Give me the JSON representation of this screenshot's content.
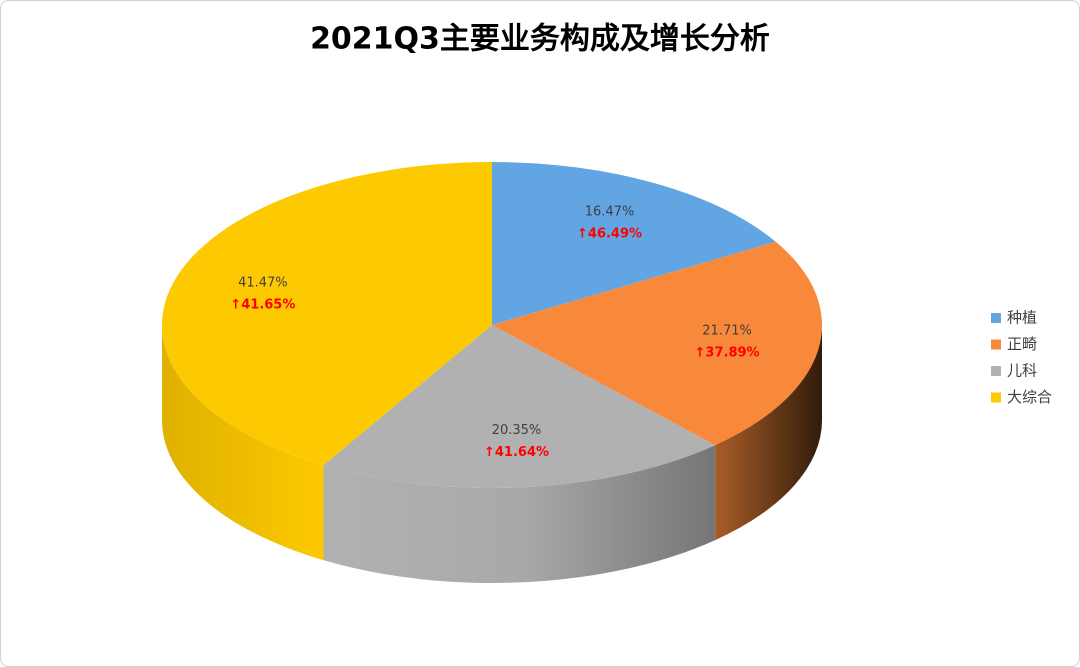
{
  "chart_data": {
    "type": "pie3d",
    "title": "2021Q3主要业务构成及增长分析",
    "categories": [
      "种植",
      "正畸",
      "儿科",
      "大综合"
    ],
    "values": [
      16.47,
      21.71,
      20.35,
      41.47
    ],
    "value_labels": [
      "16.47%",
      "21.71%",
      "20.35%",
      "41.47%"
    ],
    "growth_labels": [
      "↑46.49%",
      "↑37.89%",
      "↑41.64%",
      "↑41.65%"
    ],
    "colors": [
      "#62a5e3",
      "#f8883a",
      "#b1b1b1",
      "#fdc900"
    ],
    "legend": "right"
  }
}
